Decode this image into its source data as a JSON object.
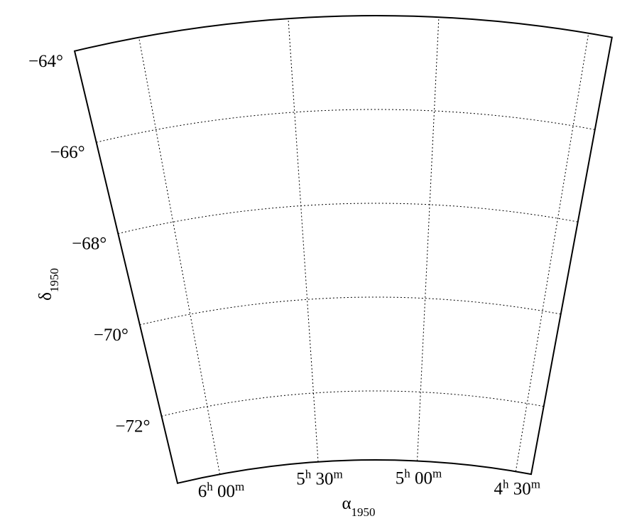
{
  "chart_data": {
    "type": "sky-map",
    "xlabel": "α1950",
    "ylabel": "δ1950",
    "xlim": [
      6.218,
      4.421
    ],
    "ylim": [
      -73.47,
      -64
    ],
    "xticks": [
      {
        "value": 6,
        "label": "6h 00m"
      },
      {
        "value": 5.5,
        "label": "5h 30m"
      },
      {
        "value": 5,
        "label": "5h 00m"
      },
      {
        "value": 4.5,
        "label": "4h 30m"
      }
    ],
    "yticks": [
      {
        "value": -64,
        "label": "−64°"
      },
      {
        "value": -66,
        "label": "−66°"
      },
      {
        "value": -68,
        "label": "−68°"
      },
      {
        "value": -70,
        "label": "−70°"
      },
      {
        "value": -72,
        "label": "−72°"
      }
    ],
    "grid": true
  }
}
